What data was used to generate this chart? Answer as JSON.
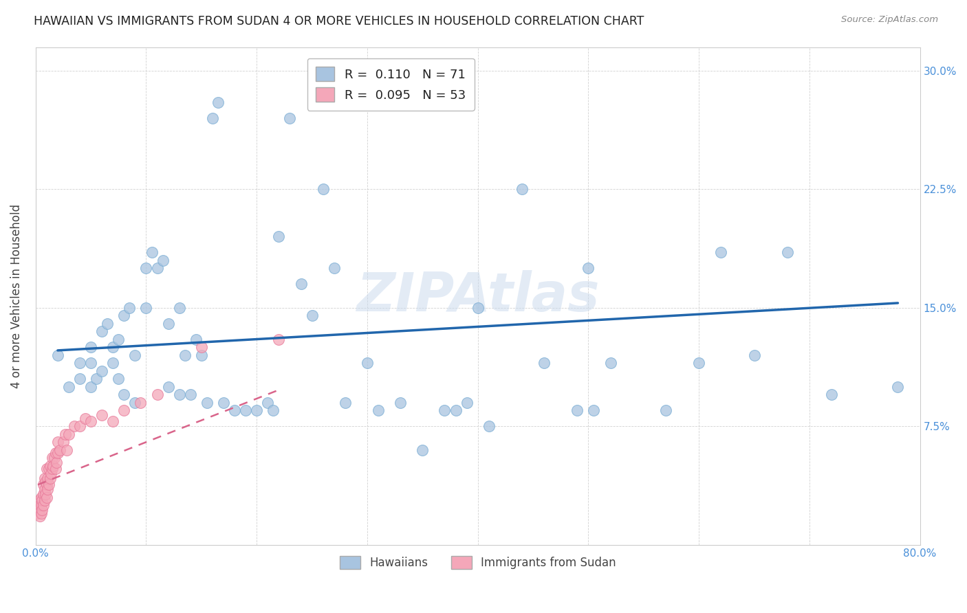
{
  "title": "HAWAIIAN VS IMMIGRANTS FROM SUDAN 4 OR MORE VEHICLES IN HOUSEHOLD CORRELATION CHART",
  "source": "Source: ZipAtlas.com",
  "ylabel": "4 or more Vehicles in Household",
  "xlim": [
    0.0,
    0.8
  ],
  "ylim": [
    0.0,
    0.315
  ],
  "xticks": [
    0.0,
    0.1,
    0.2,
    0.3,
    0.4,
    0.5,
    0.6,
    0.7,
    0.8
  ],
  "yticks": [
    0.0,
    0.075,
    0.15,
    0.225,
    0.3
  ],
  "hawaii_R": "0.110",
  "hawaii_N": "71",
  "sudan_R": "0.095",
  "sudan_N": "53",
  "hawaii_color": "#a8c4e0",
  "hawaii_edge_color": "#7aadd4",
  "hawaii_line_color": "#2166ac",
  "sudan_color": "#f4a7b9",
  "sudan_edge_color": "#e87a9a",
  "sudan_line_color": "#d9648a",
  "grid_color": "#cccccc",
  "hawaii_scatter_x": [
    0.02,
    0.03,
    0.04,
    0.04,
    0.05,
    0.05,
    0.05,
    0.055,
    0.06,
    0.06,
    0.065,
    0.07,
    0.07,
    0.075,
    0.075,
    0.08,
    0.08,
    0.085,
    0.09,
    0.09,
    0.1,
    0.1,
    0.105,
    0.11,
    0.115,
    0.12,
    0.12,
    0.13,
    0.13,
    0.135,
    0.14,
    0.145,
    0.15,
    0.155,
    0.16,
    0.165,
    0.17,
    0.18,
    0.19,
    0.2,
    0.21,
    0.215,
    0.22,
    0.23,
    0.24,
    0.25,
    0.26,
    0.27,
    0.28,
    0.3,
    0.31,
    0.33,
    0.35,
    0.37,
    0.38,
    0.39,
    0.4,
    0.41,
    0.44,
    0.46,
    0.49,
    0.5,
    0.505,
    0.52,
    0.57,
    0.6,
    0.62,
    0.65,
    0.68,
    0.72,
    0.78
  ],
  "hawaii_scatter_y": [
    0.12,
    0.1,
    0.105,
    0.115,
    0.1,
    0.115,
    0.125,
    0.105,
    0.11,
    0.135,
    0.14,
    0.115,
    0.125,
    0.105,
    0.13,
    0.095,
    0.145,
    0.15,
    0.09,
    0.12,
    0.15,
    0.175,
    0.185,
    0.175,
    0.18,
    0.1,
    0.14,
    0.095,
    0.15,
    0.12,
    0.095,
    0.13,
    0.12,
    0.09,
    0.27,
    0.28,
    0.09,
    0.085,
    0.085,
    0.085,
    0.09,
    0.085,
    0.195,
    0.27,
    0.165,
    0.145,
    0.225,
    0.175,
    0.09,
    0.115,
    0.085,
    0.09,
    0.06,
    0.085,
    0.085,
    0.09,
    0.15,
    0.075,
    0.225,
    0.115,
    0.085,
    0.175,
    0.085,
    0.115,
    0.085,
    0.115,
    0.185,
    0.12,
    0.185,
    0.095,
    0.1
  ],
  "sudan_scatter_x": [
    0.002,
    0.003,
    0.003,
    0.004,
    0.004,
    0.005,
    0.005,
    0.005,
    0.006,
    0.006,
    0.007,
    0.007,
    0.007,
    0.008,
    0.008,
    0.008,
    0.009,
    0.009,
    0.01,
    0.01,
    0.01,
    0.011,
    0.011,
    0.012,
    0.012,
    0.013,
    0.013,
    0.014,
    0.015,
    0.015,
    0.016,
    0.017,
    0.018,
    0.018,
    0.019,
    0.02,
    0.02,
    0.022,
    0.025,
    0.027,
    0.028,
    0.03,
    0.035,
    0.04,
    0.045,
    0.05,
    0.06,
    0.07,
    0.08,
    0.095,
    0.11,
    0.15,
    0.22
  ],
  "sudan_scatter_y": [
    0.02,
    0.022,
    0.028,
    0.018,
    0.025,
    0.02,
    0.025,
    0.03,
    0.022,
    0.028,
    0.025,
    0.032,
    0.038,
    0.028,
    0.035,
    0.042,
    0.032,
    0.04,
    0.03,
    0.038,
    0.048,
    0.035,
    0.042,
    0.038,
    0.048,
    0.042,
    0.05,
    0.045,
    0.048,
    0.055,
    0.05,
    0.055,
    0.048,
    0.058,
    0.052,
    0.058,
    0.065,
    0.06,
    0.065,
    0.07,
    0.06,
    0.07,
    0.075,
    0.075,
    0.08,
    0.078,
    0.082,
    0.078,
    0.085,
    0.09,
    0.095,
    0.125,
    0.13
  ],
  "hawaii_line_x": [
    0.02,
    0.78
  ],
  "hawaii_line_y": [
    0.123,
    0.153
  ],
  "sudan_line_x": [
    0.002,
    0.22
  ],
  "sudan_line_y": [
    0.038,
    0.098
  ]
}
